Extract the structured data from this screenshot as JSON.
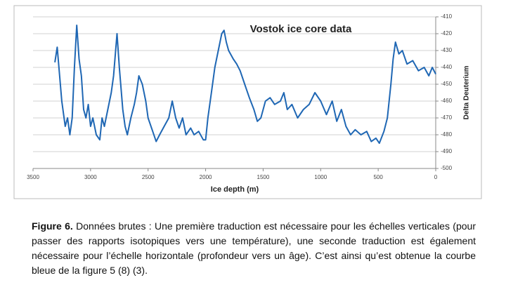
{
  "chart_data": {
    "type": "line",
    "title": "Vostok ice core data",
    "x_label": "Ice depth (m)",
    "y_label": "Delta Deuterium",
    "x": [
      3310,
      3290,
      3250,
      3220,
      3200,
      3180,
      3160,
      3140,
      3120,
      3100,
      3080,
      3060,
      3040,
      3020,
      3000,
      2980,
      2950,
      2920,
      2900,
      2880,
      2850,
      2820,
      2800,
      2770,
      2750,
      2720,
      2700,
      2680,
      2650,
      2620,
      2600,
      2580,
      2550,
      2520,
      2500,
      2460,
      2430,
      2400,
      2360,
      2320,
      2290,
      2260,
      2230,
      2200,
      2170,
      2130,
      2100,
      2060,
      2020,
      2000,
      1980,
      1950,
      1920,
      1890,
      1860,
      1840,
      1820,
      1800,
      1760,
      1730,
      1700,
      1660,
      1620,
      1580,
      1550,
      1520,
      1480,
      1440,
      1400,
      1350,
      1320,
      1290,
      1250,
      1200,
      1150,
      1100,
      1050,
      1000,
      950,
      900,
      860,
      820,
      780,
      740,
      700,
      650,
      600,
      560,
      520,
      490,
      450,
      420,
      390,
      370,
      350,
      320,
      290,
      250,
      200,
      150,
      100,
      60,
      30,
      0
    ],
    "series": [
      {
        "name": "Delta Deuterium",
        "color": "#1f67b4",
        "values": [
          -437,
          -428,
          -460,
          -475,
          -470,
          -480,
          -470,
          -440,
          -415,
          -435,
          -445,
          -465,
          -470,
          -462,
          -475,
          -470,
          -480,
          -483,
          -470,
          -475,
          -465,
          -455,
          -445,
          -420,
          -440,
          -465,
          -475,
          -480,
          -470,
          -462,
          -455,
          -445,
          -450,
          -460,
          -470,
          -478,
          -484,
          -480,
          -475,
          -470,
          -460,
          -470,
          -476,
          -470,
          -480,
          -476,
          -480,
          -478,
          -483,
          -483,
          -470,
          -455,
          -440,
          -430,
          -420,
          -418,
          -425,
          -430,
          -435,
          -438,
          -442,
          -450,
          -458,
          -465,
          -472,
          -470,
          -460,
          -458,
          -462,
          -460,
          -455,
          -465,
          -462,
          -470,
          -465,
          -462,
          -455,
          -460,
          -468,
          -460,
          -472,
          -465,
          -475,
          -480,
          -477,
          -480,
          -478,
          -484,
          -482,
          -485,
          -478,
          -470,
          -450,
          -435,
          -425,
          -432,
          -430,
          -438,
          -436,
          -442,
          -440,
          -445,
          -440,
          -444
        ]
      }
    ],
    "xlim": [
      3500,
      0
    ],
    "xticks": [
      3500,
      3000,
      2500,
      2000,
      1500,
      1000,
      500,
      0
    ],
    "ylim": [
      -500,
      -410
    ],
    "yticks": [
      -410,
      -420,
      -430,
      -440,
      -450,
      -460,
      -470,
      -480,
      -490,
      -500
    ],
    "grid": true
  },
  "caption": {
    "label": "Figure 6.",
    "text": " Données brutes : Une première traduction est nécessaire pour les échelles verticales (pour passer des rapports isotopiques vers une température), une seconde traduction est également nécessaire pour l’échelle horizontale (profondeur vers un âge). C’est ainsi qu’est obtenue la courbe bleue de la figure 5 (8) (3)."
  }
}
